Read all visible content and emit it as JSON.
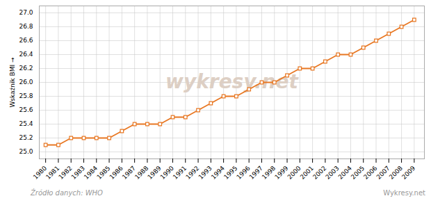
{
  "chart_data": {
    "type": "line",
    "x": [
      1980,
      1981,
      1982,
      1983,
      1984,
      1985,
      1986,
      1987,
      1988,
      1989,
      1990,
      1991,
      1992,
      1993,
      1994,
      1995,
      1996,
      1997,
      1998,
      1999,
      2000,
      2001,
      2002,
      2003,
      2004,
      2005,
      2006,
      2007,
      2008,
      2009
    ],
    "values": [
      25.1,
      25.1,
      25.2,
      25.2,
      25.2,
      25.2,
      25.3,
      25.4,
      25.4,
      25.4,
      25.5,
      25.5,
      25.6,
      25.7,
      25.8,
      25.8,
      25.9,
      26.0,
      26.0,
      26.1,
      26.2,
      26.2,
      26.3,
      26.4,
      26.4,
      26.5,
      26.6,
      26.7,
      26.8,
      26.9
    ],
    "color": "#E87722",
    "marker": "square",
    "ylabel": "Wskaźnik BMI",
    "xlim": [
      1979.5,
      2009.8
    ],
    "xticks": [
      1980,
      1981,
      1982,
      1983,
      1984,
      1985,
      1986,
      1987,
      1988,
      1989,
      1990,
      1991,
      1992,
      1993,
      1994,
      1995,
      1996,
      1997,
      1998,
      1999,
      2000,
      2001,
      2002,
      2003,
      2004,
      2005,
      2006,
      2007,
      2008,
      2009
    ],
    "ylim": [
      24.9,
      27.1
    ],
    "yticks": [
      {
        "value": 25.0,
        "label": "25.0"
      },
      25.2,
      25.4,
      25.6,
      25.8,
      {
        "value": 26.0,
        "label": "26.0"
      },
      26.2,
      26.4,
      26.6,
      26.8,
      {
        "value": 27.0,
        "label": "27.0"
      }
    ],
    "grid": true,
    "annotations": [
      "wykresy.net",
      "Źródło danych:  WHO",
      "Wykresy.net"
    ]
  }
}
